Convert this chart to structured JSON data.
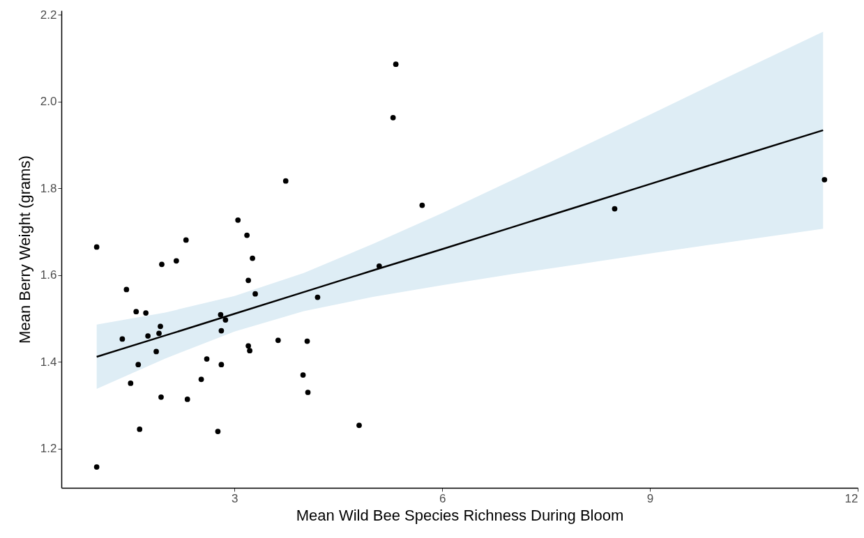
{
  "chart_data": {
    "type": "scatter",
    "xlabel": "Mean Wild Bee Species Richness During Bloom",
    "ylabel": "Mean Berry Weight (grams)",
    "xlim": [
      0.5,
      12
    ],
    "ylim": [
      1.11,
      2.21
    ],
    "xticks": [
      3,
      6,
      9,
      12
    ],
    "yticks": [
      1.2,
      1.4,
      1.6,
      1.8,
      {
        "value": 2,
        "label": "2.0"
      },
      2.2
    ],
    "grid": false,
    "marker": "circle",
    "series": [
      {
        "color": "#000000",
        "x": [
          1.01,
          1.01,
          1.38,
          1.44,
          1.5,
          1.58,
          1.61,
          1.63,
          1.72,
          1.75,
          1.87,
          1.91,
          1.93,
          1.94,
          1.95,
          2.16,
          2.3,
          2.32,
          2.52,
          2.6,
          2.76,
          2.8,
          2.81,
          2.81,
          2.87,
          3.05,
          3.18,
          3.2,
          3.2,
          3.22,
          3.26,
          3.3,
          3.63,
          3.74,
          3.99,
          4.05,
          4.06,
          4.2,
          4.8,
          5.09,
          5.29,
          5.33,
          5.71,
          8.49,
          11.52
        ],
        "values": [
          1.665,
          1.158,
          1.453,
          1.567,
          1.351,
          1.516,
          1.394,
          1.245,
          1.513,
          1.46,
          1.424,
          1.466,
          1.482,
          1.319,
          1.625,
          1.633,
          1.681,
          1.314,
          1.36,
          1.407,
          1.24,
          1.509,
          1.472,
          1.394,
          1.497,
          1.727,
          1.692,
          1.588,
          1.437,
          1.426,
          1.639,
          1.557,
          1.45,
          1.817,
          1.37,
          1.448,
          1.33,
          1.549,
          1.254,
          1.621,
          1.963,
          2.086,
          1.761,
          1.753,
          1.82
        ]
      },
      {
        "type": "line",
        "marker": "none",
        "color": "#000000",
        "x": [
          1.01,
          2,
          3,
          4,
          5,
          6,
          7,
          8,
          9,
          10,
          11.5
        ],
        "values": [
          1.412,
          1.461,
          1.511,
          1.561,
          1.611,
          1.66,
          1.71,
          1.76,
          1.81,
          1.86,
          1.934
        ],
        "lower": [
          1.338,
          1.408,
          1.47,
          1.517,
          1.55,
          1.577,
          1.602,
          1.626,
          1.65,
          1.673,
          1.707
        ],
        "upper": [
          1.486,
          1.514,
          1.552,
          1.605,
          1.672,
          1.743,
          1.818,
          1.894,
          1.97,
          2.047,
          2.161
        ]
      }
    ]
  }
}
